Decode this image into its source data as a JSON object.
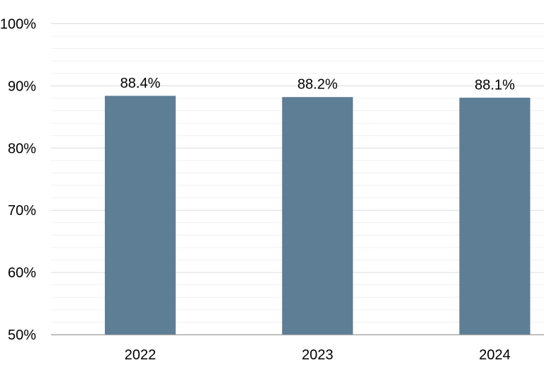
{
  "chart_data": {
    "type": "bar",
    "categories": [
      "2022",
      "2023",
      "2024"
    ],
    "values": [
      88.4,
      88.2,
      88.1
    ],
    "value_labels": [
      "88.4%",
      "88.2%",
      "88.1%"
    ],
    "title": "",
    "xlabel": "",
    "ylabel": "",
    "ylim": [
      50,
      100
    ],
    "y_ticks": [
      50,
      60,
      70,
      80,
      90,
      100
    ],
    "y_tick_labels": [
      "50%",
      "60%",
      "70%",
      "80%",
      "90%",
      "100%"
    ],
    "minor_grid_step": 2,
    "major_grid_step": 10,
    "grid": "on",
    "legend_position": "none",
    "colors": {
      "bar": "#5e7e96",
      "major_grid": "#dcdcdc",
      "minor_grid": "#f0f0f0",
      "axis_line": "#8f8f8f",
      "label_text": "#000000",
      "background": "#ffffff"
    }
  }
}
